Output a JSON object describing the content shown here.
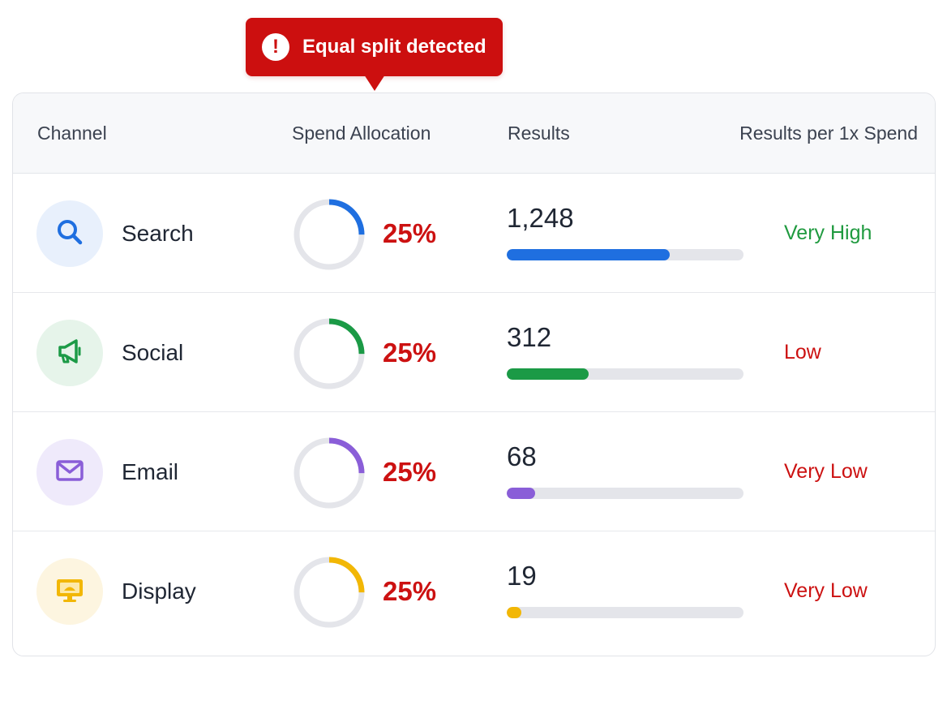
{
  "alert": {
    "icon": "exclamation-icon",
    "text": "Equal split detected",
    "color": "#cc0f0f"
  },
  "table": {
    "headers": {
      "channel": "Channel",
      "spend": "Spend Allocation",
      "results": "Results",
      "rate": "Results per 1x Spend"
    },
    "rows": [
      {
        "channel": "Search",
        "icon": "search-icon",
        "icon_color": "#1f6fe0",
        "icon_bg": "#e8f0fc",
        "spend_pct": "25%",
        "spend_fraction": 0.25,
        "results": "1,248",
        "results_fraction": 0.69,
        "rate": "Very High",
        "rate_status": "good"
      },
      {
        "channel": "Social",
        "icon": "megaphone-icon",
        "icon_color": "#1b9a46",
        "icon_bg": "#e6f4ea",
        "spend_pct": "25%",
        "spend_fraction": 0.25,
        "results": "312",
        "results_fraction": 0.345,
        "rate": "Low",
        "rate_status": "bad"
      },
      {
        "channel": "Email",
        "icon": "mail-icon",
        "icon_color": "#8a5ed8",
        "icon_bg": "#efeafb",
        "spend_pct": "25%",
        "spend_fraction": 0.25,
        "results": "68",
        "results_fraction": 0.12,
        "rate": "Very Low",
        "rate_status": "bad"
      },
      {
        "channel": "Display",
        "icon": "monitor-icon",
        "icon_color": "#f2b705",
        "icon_bg": "#fdf5e0",
        "spend_pct": "25%",
        "spend_fraction": 0.25,
        "results": "19",
        "results_fraction": 0.06,
        "rate": "Very Low",
        "rate_status": "bad"
      }
    ]
  }
}
